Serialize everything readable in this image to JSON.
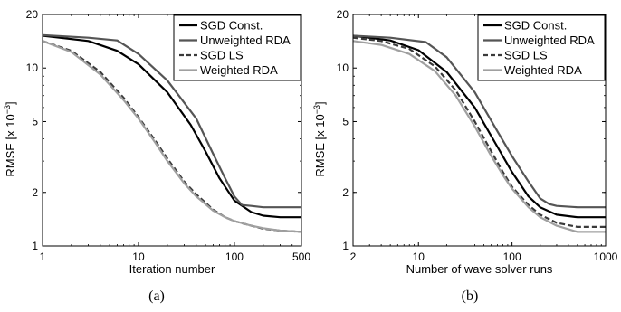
{
  "colors": {
    "sgd_const": "#000000",
    "unweighted_rda": "#555555",
    "sgd_ls": "#3a3a3a",
    "weighted_rda": "#a0a0a0"
  },
  "chart_data": [
    {
      "type": "line",
      "panel_label": "(a)",
      "xlabel": "Iteration number",
      "ylabel": "RMSE [x 10",
      "ylabel_exp": "−3",
      "ylabel_close": "]",
      "xscale": "log",
      "yscale": "log",
      "xlim": [
        1,
        500
      ],
      "ylim": [
        1,
        20
      ],
      "xticks": [
        1,
        10,
        100,
        500
      ],
      "xtick_labels": [
        "1",
        "10",
        "100",
        "500"
      ],
      "yticks": [
        1,
        2,
        5,
        10,
        20
      ],
      "ytick_labels": [
        "1",
        "2",
        "5",
        "10",
        "20"
      ],
      "grid": false,
      "legend_position": "top-right",
      "series": [
        {
          "name": "SGD Const.",
          "x": [
            1,
            3,
            6,
            10,
            20,
            35,
            50,
            70,
            100,
            150,
            200,
            300,
            500
          ],
          "y": [
            15.2,
            14.2,
            12.5,
            10.5,
            7.3,
            4.8,
            3.4,
            2.4,
            1.8,
            1.55,
            1.48,
            1.45,
            1.45
          ]
        },
        {
          "name": "Unweighted RDA",
          "x": [
            1,
            3,
            6,
            10,
            20,
            40,
            60,
            80,
            100,
            120,
            150,
            200,
            300,
            500
          ],
          "y": [
            15.3,
            14.8,
            14.3,
            12.0,
            8.5,
            5.2,
            3.3,
            2.4,
            1.9,
            1.7,
            1.68,
            1.65,
            1.65,
            1.65
          ]
        },
        {
          "name": "SGD LS",
          "x": [
            1,
            2,
            4,
            7,
            10,
            15,
            20,
            30,
            40,
            60,
            80,
            100,
            150,
            200,
            300,
            500
          ],
          "y": [
            14.2,
            12.5,
            9.5,
            6.8,
            5.3,
            3.9,
            3.1,
            2.3,
            1.95,
            1.6,
            1.45,
            1.38,
            1.3,
            1.25,
            1.22,
            1.2
          ]
        },
        {
          "name": "Weighted RDA",
          "x": [
            1,
            2,
            4,
            7,
            10,
            15,
            20,
            30,
            40,
            60,
            80,
            100,
            150,
            200,
            300,
            500
          ],
          "y": [
            14.2,
            12.3,
            9.2,
            6.6,
            5.2,
            3.8,
            3.0,
            2.25,
            1.9,
            1.58,
            1.45,
            1.38,
            1.3,
            1.26,
            1.22,
            1.2
          ]
        }
      ]
    },
    {
      "type": "line",
      "panel_label": "(b)",
      "xlabel": "Number of wave solver runs",
      "ylabel": "RMSE [x 10",
      "ylabel_exp": "−3",
      "ylabel_close": "]",
      "xscale": "log",
      "yscale": "log",
      "xlim": [
        2,
        1000
      ],
      "ylim": [
        1,
        20
      ],
      "xticks": [
        2,
        10,
        100,
        1000
      ],
      "xtick_labels": [
        "2",
        "10",
        "100",
        "1000"
      ],
      "yticks": [
        1,
        2,
        5,
        10,
        20
      ],
      "ytick_labels": [
        "1",
        "2",
        "5",
        "10",
        "20"
      ],
      "grid": false,
      "legend_position": "top-right",
      "series": [
        {
          "name": "SGD Const.",
          "x": [
            2,
            5,
            10,
            20,
            40,
            70,
            100,
            150,
            200,
            300,
            500,
            1000
          ],
          "y": [
            15.2,
            14.3,
            12.6,
            9.5,
            6.0,
            3.6,
            2.6,
            1.9,
            1.65,
            1.5,
            1.45,
            1.45
          ]
        },
        {
          "name": "Unweighted RDA",
          "x": [
            2,
            5,
            12,
            20,
            40,
            70,
            100,
            150,
            200,
            250,
            300,
            500,
            1000
          ],
          "y": [
            15.2,
            14.8,
            14.0,
            11.5,
            7.3,
            4.4,
            3.2,
            2.3,
            1.85,
            1.72,
            1.68,
            1.65,
            1.65
          ]
        },
        {
          "name": "SGD LS",
          "x": [
            2,
            4,
            8,
            15,
            25,
            40,
            60,
            80,
            100,
            150,
            200,
            300,
            500,
            1000
          ],
          "y": [
            14.8,
            14.2,
            12.8,
            10.2,
            7.5,
            5.0,
            3.4,
            2.6,
            2.15,
            1.7,
            1.5,
            1.35,
            1.28,
            1.28
          ]
        },
        {
          "name": "Weighted RDA",
          "x": [
            2,
            4,
            8,
            15,
            25,
            40,
            60,
            80,
            100,
            150,
            200,
            300,
            500,
            1000
          ],
          "y": [
            14.2,
            13.5,
            12.0,
            9.6,
            7.0,
            4.7,
            3.2,
            2.5,
            2.1,
            1.65,
            1.45,
            1.3,
            1.2,
            1.2
          ]
        }
      ]
    }
  ]
}
